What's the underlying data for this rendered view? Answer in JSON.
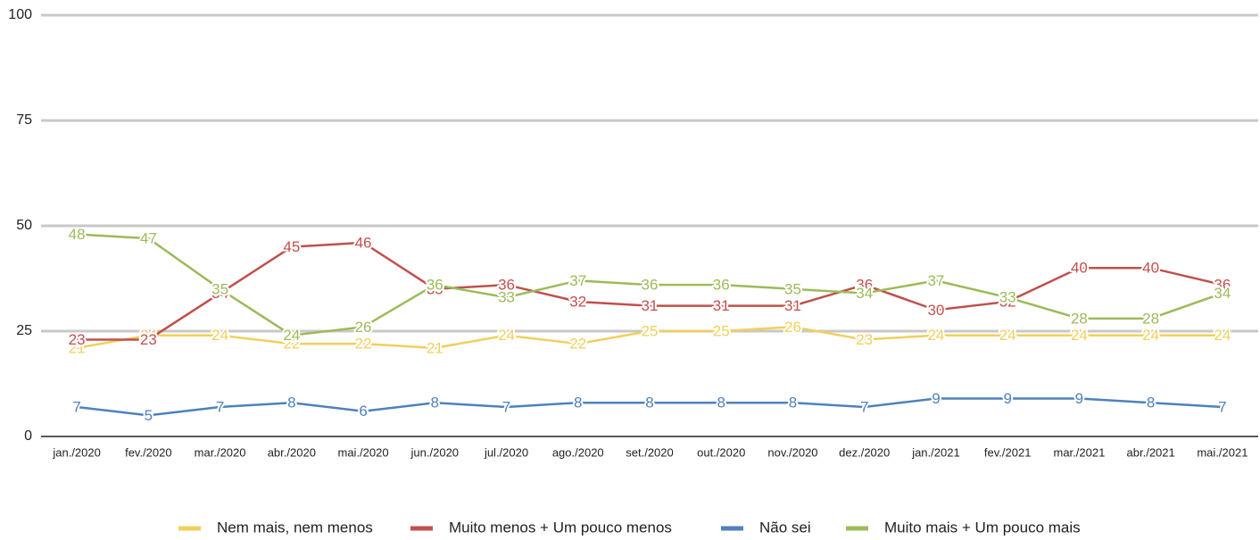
{
  "chart_data": {
    "type": "line",
    "categories": [
      "jan./2020",
      "fev./2020",
      "mar./2020",
      "abr./2020",
      "mai./2020",
      "jun./2020",
      "jul./2020",
      "ago./2020",
      "set./2020",
      "out./2020",
      "nov./2020",
      "dez./2020",
      "jan./2021",
      "fev./2021",
      "mar./2021",
      "abr./2021",
      "mai./2021"
    ],
    "series": [
      {
        "name": "Nem mais, nem menos",
        "color": "#f2cf5b",
        "values": [
          21,
          24,
          24,
          22,
          22,
          21,
          24,
          22,
          25,
          25,
          26,
          23,
          24,
          24,
          24,
          24,
          24
        ]
      },
      {
        "name": "Muito menos + Um pouco menos",
        "color": "#c0504d",
        "values": [
          23,
          23,
          34,
          45,
          46,
          35,
          36,
          32,
          31,
          31,
          31,
          36,
          30,
          32,
          40,
          40,
          36
        ]
      },
      {
        "name": "Não sei",
        "color": "#4f81bd",
        "values": [
          7,
          5,
          7,
          8,
          6,
          8,
          7,
          8,
          8,
          8,
          8,
          7,
          9,
          9,
          9,
          8,
          7
        ]
      },
      {
        "name": "Muito mais + Um pouco mais",
        "color": "#9bbb59",
        "values": [
          48,
          47,
          35,
          24,
          26,
          36,
          33,
          37,
          36,
          36,
          35,
          34,
          37,
          33,
          28,
          28,
          34
        ]
      }
    ],
    "ylim": [
      0,
      100
    ],
    "yticks": [
      0,
      25,
      50,
      75,
      100
    ],
    "grid": true,
    "legend": "bottom"
  }
}
